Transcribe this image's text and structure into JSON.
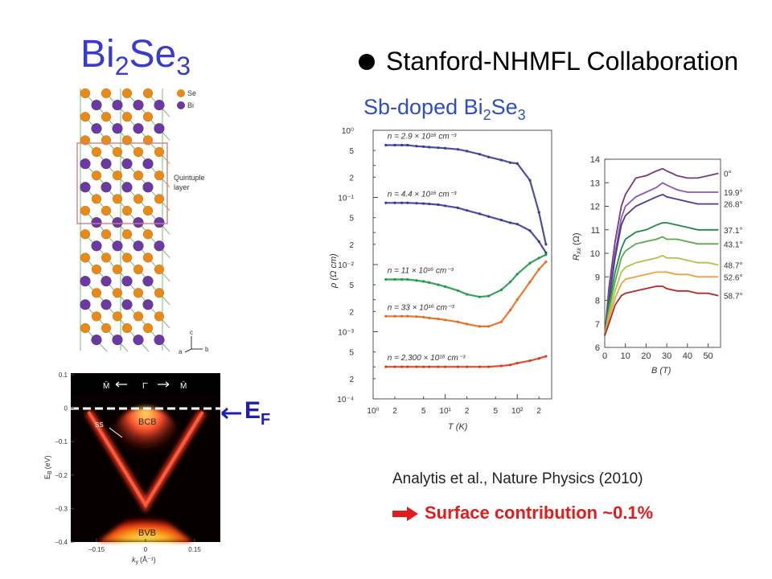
{
  "slide": {
    "title_main": "Bi",
    "title_sub1": "2",
    "title_mid": "Se",
    "title_sub2": "3",
    "bullet_text": "Stanford-NHMFL Collaboration",
    "sample_main": "Sb-doped Bi",
    "sample_sub1": "2",
    "sample_mid": "Se",
    "sample_sub2": "3",
    "citation": "Analytis et al., Nature Physics (2010)",
    "conclusion": "Surface contribution ~0.1%",
    "fermi_main": "E",
    "fermi_sub": "F",
    "accent_color": "#3a3acf",
    "conclusion_color": "#e01c1c"
  },
  "crystal": {
    "legend": [
      {
        "label": "Se",
        "color": "#e88a1a"
      },
      {
        "label": "Bi",
        "color": "#6a3aa0"
      }
    ],
    "box_label_line1": "Quintuple",
    "box_label_line2": "layer",
    "axis_c": "c",
    "axis_a": "a",
    "axis_b": "b"
  },
  "arpes": {
    "y_ticks": [
      "0.1",
      "0",
      "−0.1",
      "−0.2",
      "−0.3",
      "−0.4"
    ],
    "x_ticks": [
      "−0.15",
      "0",
      "0.15"
    ],
    "ylabel": "E",
    "ylabel_sub": "B",
    "ylabel_unit": "(eV)",
    "xlabel": "k",
    "xlabel_sub": "y",
    "xlabel_unit": "(Å⁻¹)",
    "labels": {
      "ss": "SS",
      "bcb": "BCB",
      "bvb": "BVB"
    },
    "symmetry_points": [
      "M̄",
      "Γ̄",
      "M̄"
    ]
  },
  "chart_data": [
    {
      "type": "scatter",
      "ylabel": "ρ (Ω cm)",
      "xlabel": "T (K)",
      "x_scale": "log",
      "y_scale": "log",
      "xlim": [
        1,
        300
      ],
      "ylim": [
        0.0001,
        1
      ],
      "y_decade_labels": [
        "10⁰",
        "10⁻¹",
        "10⁻²",
        "10⁻³",
        "10⁻⁴"
      ],
      "y_minor_labels": [
        "5",
        "2",
        "5",
        "2",
        "5",
        "2",
        "5",
        "2"
      ],
      "x_tick_labels": [
        "10⁰",
        "2",
        "5",
        "10¹",
        "2",
        "5",
        "10²",
        "2"
      ],
      "series": [
        {
          "name": "n = 2.9 × 10¹⁶ cm⁻³",
          "color": "#3a3a9a",
          "x": [
            1.5,
            2,
            2.5,
            3,
            4,
            5,
            6,
            8,
            10,
            15,
            20,
            30,
            40,
            60,
            80,
            100,
            150,
            200,
            250
          ],
          "y": [
            0.6,
            0.6,
            0.6,
            0.6,
            0.58,
            0.57,
            0.56,
            0.55,
            0.54,
            0.52,
            0.49,
            0.44,
            0.4,
            0.36,
            0.33,
            0.32,
            0.18,
            0.06,
            0.02
          ]
        },
        {
          "name": "n = 4.4 × 10¹⁶ cm⁻³",
          "color": "#3a3a9a",
          "x": [
            1.5,
            2,
            2.5,
            3,
            4,
            5,
            6,
            8,
            10,
            15,
            20,
            30,
            40,
            60,
            80,
            100,
            150,
            200,
            250
          ],
          "y": [
            0.083,
            0.083,
            0.083,
            0.083,
            0.082,
            0.081,
            0.08,
            0.078,
            0.075,
            0.07,
            0.064,
            0.057,
            0.052,
            0.046,
            0.042,
            0.04,
            0.032,
            0.022,
            0.015
          ]
        },
        {
          "name": "n = 11 × 10¹⁶ cm⁻³",
          "color": "#1f9a48",
          "x": [
            1.5,
            2,
            2.5,
            3,
            4,
            5,
            6,
            8,
            10,
            15,
            20,
            30,
            40,
            60,
            80,
            100,
            150,
            200,
            250
          ],
          "y": [
            0.006,
            0.006,
            0.006,
            0.006,
            0.0058,
            0.0056,
            0.0054,
            0.005,
            0.0047,
            0.0041,
            0.0036,
            0.0033,
            0.0034,
            0.0042,
            0.0055,
            0.0072,
            0.0105,
            0.0125,
            0.014
          ]
        },
        {
          "name": "n = 33 × 10¹⁶ cm⁻³",
          "color": "#e86a1a",
          "x": [
            1.5,
            2,
            2.5,
            3,
            4,
            5,
            6,
            8,
            10,
            15,
            20,
            30,
            40,
            60,
            80,
            100,
            150,
            200,
            250
          ],
          "y": [
            0.0017,
            0.0017,
            0.0017,
            0.0017,
            0.00168,
            0.00165,
            0.0016,
            0.00155,
            0.0015,
            0.0014,
            0.0013,
            0.0012,
            0.0012,
            0.0014,
            0.0021,
            0.003,
            0.0055,
            0.0085,
            0.011
          ]
        },
        {
          "name": "n = 2,300 × 10¹⁶ cm⁻³",
          "color": "#e03a1a",
          "x": [
            1.5,
            2,
            2.5,
            3,
            4,
            5,
            6,
            8,
            10,
            15,
            20,
            30,
            40,
            60,
            80,
            100,
            150,
            200,
            250
          ],
          "y": [
            0.0003,
            0.0003,
            0.0003,
            0.0003,
            0.0003,
            0.0003,
            0.0003,
            0.0003,
            0.0003,
            0.0003,
            0.0003,
            0.0003,
            0.0003,
            0.00031,
            0.00032,
            0.00034,
            0.00037,
            0.0004,
            0.00043
          ]
        }
      ]
    },
    {
      "type": "line",
      "ylabel": "R",
      "ylabel_sub": "xx",
      "ylabel_unit": "(Ω)",
      "xlabel": "B (T)",
      "xlim": [
        0,
        56
      ],
      "ylim": [
        6,
        14
      ],
      "x_ticks": [
        0,
        10,
        20,
        30,
        40,
        50
      ],
      "y_ticks": [
        6,
        7,
        8,
        9,
        10,
        11,
        12,
        13,
        14
      ],
      "series": [
        {
          "name": "0°",
          "color": "#7a3a7a",
          "x": [
            0,
            2,
            5,
            8,
            10,
            15,
            20,
            25,
            28,
            30,
            35,
            40,
            45,
            50,
            55
          ],
          "y": [
            6.5,
            8.5,
            10.5,
            12.0,
            12.5,
            13.2,
            13.3,
            13.5,
            13.6,
            13.5,
            13.3,
            13.2,
            13.2,
            13.3,
            13.4
          ]
        },
        {
          "name": "19.9°",
          "color": "#8a5ab0",
          "x": [
            0,
            2,
            5,
            8,
            10,
            15,
            20,
            25,
            28,
            30,
            35,
            40,
            45,
            50,
            55
          ],
          "y": [
            6.5,
            8.2,
            10.0,
            11.5,
            12.0,
            12.4,
            12.6,
            12.8,
            13.0,
            12.9,
            12.7,
            12.6,
            12.6,
            12.6,
            12.6
          ]
        },
        {
          "name": "26.8°",
          "color": "#4a3a9a",
          "x": [
            0,
            2,
            5,
            8,
            10,
            15,
            20,
            25,
            28,
            30,
            35,
            40,
            45,
            50,
            55
          ],
          "y": [
            6.5,
            8.0,
            9.8,
            11.2,
            11.6,
            12.0,
            12.2,
            12.4,
            12.5,
            12.4,
            12.3,
            12.2,
            12.1,
            12.1,
            12.1
          ]
        },
        {
          "name": "37.1°",
          "color": "#1f8a48",
          "x": [
            0,
            2,
            5,
            8,
            10,
            15,
            20,
            25,
            28,
            30,
            35,
            40,
            45,
            50,
            55
          ],
          "y": [
            6.5,
            7.8,
            9.2,
            10.2,
            10.6,
            10.9,
            11.0,
            11.2,
            11.3,
            11.3,
            11.2,
            11.1,
            11.0,
            11.0,
            11.0
          ]
        },
        {
          "name": "43.1°",
          "color": "#5aaa48",
          "x": [
            0,
            2,
            5,
            8,
            10,
            15,
            20,
            25,
            28,
            30,
            35,
            40,
            45,
            50,
            55
          ],
          "y": [
            6.5,
            7.6,
            8.8,
            9.8,
            10.1,
            10.4,
            10.5,
            10.6,
            10.7,
            10.6,
            10.6,
            10.5,
            10.4,
            10.4,
            10.4
          ]
        },
        {
          "name": "48.7°",
          "color": "#a8c84a",
          "x": [
            0,
            2,
            5,
            8,
            10,
            15,
            20,
            25,
            28,
            30,
            35,
            40,
            45,
            50,
            55
          ],
          "y": [
            6.5,
            7.4,
            8.4,
            9.2,
            9.4,
            9.6,
            9.7,
            9.8,
            9.9,
            9.8,
            9.8,
            9.7,
            9.6,
            9.6,
            9.5
          ]
        },
        {
          "name": "52.6°",
          "color": "#f0a040",
          "x": [
            0,
            2,
            5,
            8,
            10,
            15,
            20,
            25,
            28,
            30,
            35,
            40,
            45,
            50,
            55
          ],
          "y": [
            6.5,
            7.2,
            8.1,
            8.7,
            8.9,
            9.0,
            9.1,
            9.2,
            9.2,
            9.2,
            9.1,
            9.1,
            9.0,
            9.0,
            9.0
          ]
        },
        {
          "name": "58.7°",
          "color": "#b02a2a",
          "x": [
            0,
            2,
            5,
            8,
            10,
            15,
            20,
            25,
            28,
            30,
            35,
            40,
            45,
            50,
            55
          ],
          "y": [
            6.5,
            7.0,
            7.8,
            8.2,
            8.3,
            8.4,
            8.5,
            8.6,
            8.6,
            8.5,
            8.4,
            8.4,
            8.3,
            8.3,
            8.2
          ]
        }
      ]
    }
  ]
}
